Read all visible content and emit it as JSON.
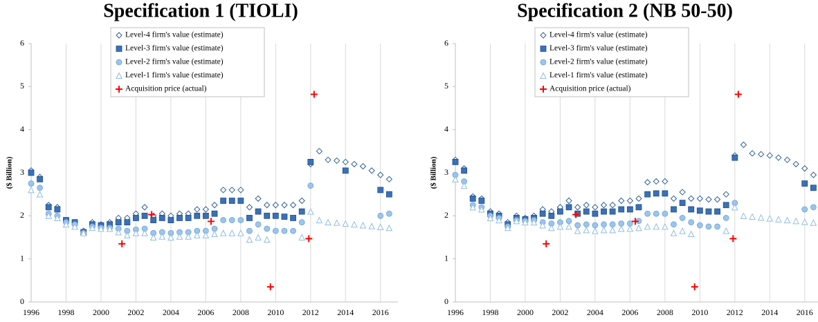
{
  "chart_data": [
    {
      "type": "scatter",
      "title": "Specification 1 (TIOLI)",
      "y_label": "($ Billion)",
      "xlim": [
        1996,
        2017
      ],
      "ylim": [
        0,
        6
      ],
      "xticks": [
        1996,
        1998,
        2000,
        2002,
        2004,
        2006,
        2008,
        2010,
        2012,
        2014,
        2016
      ],
      "yticks": [
        0,
        1,
        2,
        3,
        4,
        5,
        6
      ],
      "grid": "x",
      "series": [
        {
          "name": "Level-4 firm's value (estimate)",
          "color": "#2f5f9a",
          "marker": "diamond",
          "x": [
            1996,
            1996.5,
            1997,
            1997.5,
            1998,
            1998.5,
            1999,
            1999.5,
            2000,
            2000.5,
            2001,
            2001.5,
            2002,
            2002.5,
            2003,
            2003.5,
            2004,
            2004.5,
            2005,
            2005.5,
            2006,
            2006.5,
            2007,
            2007.5,
            2008,
            2008.5,
            2009,
            2009.5,
            2010,
            2010.5,
            2011,
            2011.5,
            2012,
            2012.5,
            2013,
            2013.5,
            2014,
            2014.5,
            2015,
            2015.5,
            2016,
            2016.5
          ],
          "values": [
            3.05,
            2.9,
            2.25,
            2.2,
            1.9,
            1.85,
            1.65,
            1.85,
            1.8,
            1.85,
            1.95,
            1.95,
            2.05,
            2.2,
            2.0,
            2.05,
            2.0,
            2.05,
            2.05,
            2.15,
            2.15,
            2.25,
            2.6,
            2.6,
            2.6,
            2.2,
            2.4,
            2.25,
            2.25,
            2.25,
            2.25,
            2.35,
            3.2,
            3.5,
            3.3,
            3.28,
            3.25,
            3.2,
            3.15,
            3.05,
            2.95,
            2.85
          ]
        },
        {
          "name": "Level-3 firm's value (estimate)",
          "color": "#3a70b8",
          "marker": "square",
          "x": [
            1996,
            1996.5,
            1997,
            1997.5,
            1998,
            1998.5,
            1999,
            1999.5,
            2000,
            2000.5,
            2001,
            2001.5,
            2002,
            2002.5,
            2003,
            2003.5,
            2004,
            2004.5,
            2005,
            2005.5,
            2006,
            2006.5,
            2007,
            2007.5,
            2008,
            2008.5,
            2009,
            2009.5,
            2010,
            2010.5,
            2011,
            2011.5,
            2012,
            2012.5,
            2013,
            2013.5,
            2014,
            2014.5,
            2015,
            2015.5,
            2016,
            2016.5
          ],
          "values": [
            3.0,
            2.85,
            2.2,
            2.15,
            1.9,
            1.85,
            1.62,
            1.8,
            1.78,
            1.8,
            1.85,
            1.85,
            1.95,
            2.0,
            1.9,
            1.95,
            1.9,
            1.95,
            1.95,
            2.0,
            2.0,
            2.05,
            2.35,
            2.35,
            2.35,
            1.95,
            2.1,
            2.0,
            2.0,
            1.98,
            1.95,
            2.1,
            3.25,
            null,
            null,
            null,
            3.05,
            null,
            null,
            null,
            2.6,
            2.5
          ]
        },
        {
          "name": "Level-2 firm's value (estimate)",
          "color": "#9cc4ec",
          "marker": "circle",
          "x": [
            1996,
            1996.5,
            1997,
            1997.5,
            1998,
            1998.5,
            1999,
            1999.5,
            2000,
            2000.5,
            2001,
            2001.5,
            2002,
            2002.5,
            2003,
            2003.5,
            2004,
            2004.5,
            2005,
            2005.5,
            2006,
            2006.5,
            2007,
            2007.5,
            2008,
            2008.5,
            2009,
            2009.5,
            2010,
            2010.5,
            2011,
            2011.5,
            2012,
            2012.5,
            2013,
            2013.5,
            2014,
            2014.5,
            2015,
            2015.5,
            2016,
            2016.5
          ],
          "values": [
            2.75,
            2.65,
            2.05,
            2.0,
            1.85,
            1.8,
            1.6,
            1.75,
            1.72,
            1.72,
            1.7,
            1.65,
            1.68,
            1.7,
            1.6,
            1.62,
            1.6,
            1.62,
            1.62,
            1.65,
            1.65,
            1.7,
            1.9,
            1.9,
            1.9,
            1.65,
            1.8,
            1.7,
            1.65,
            1.65,
            1.65,
            1.85,
            2.7,
            null,
            null,
            null,
            null,
            null,
            null,
            null,
            2.0,
            2.05
          ]
        },
        {
          "name": "Level-1 firm's value (estimate)",
          "color": "#8fbde6",
          "marker": "triangle",
          "x": [
            1996,
            1996.5,
            1997,
            1997.5,
            1998,
            1998.5,
            1999,
            1999.5,
            2000,
            2000.5,
            2001,
            2001.5,
            2002,
            2002.5,
            2003,
            2003.5,
            2004,
            2004.5,
            2005,
            2005.5,
            2006,
            2006.5,
            2007,
            2007.5,
            2008,
            2008.5,
            2009,
            2009.5,
            2010,
            2010.5,
            2011,
            2011.5,
            2012,
            2012.5,
            2013,
            2013.5,
            2014,
            2014.5,
            2015,
            2015.5,
            2016,
            2016.5
          ],
          "values": [
            2.6,
            2.5,
            2.0,
            1.95,
            1.8,
            1.75,
            1.6,
            1.72,
            1.7,
            1.7,
            1.62,
            1.55,
            1.6,
            1.6,
            1.5,
            1.52,
            1.5,
            1.52,
            1.52,
            1.55,
            1.55,
            1.58,
            1.6,
            1.6,
            1.6,
            1.45,
            1.5,
            1.45,
            null,
            null,
            null,
            1.5,
            2.1,
            1.9,
            1.85,
            1.84,
            1.82,
            1.8,
            1.78,
            1.76,
            1.74,
            1.72
          ]
        },
        {
          "name": "Acquisition price (actual)",
          "color": "#ff0000",
          "marker": "plus",
          "x": [
            2001.2,
            2002.9,
            2006.3,
            2009.7,
            2011.9,
            2012.2
          ],
          "values": [
            1.35,
            2.03,
            1.87,
            0.35,
            1.47,
            4.82
          ]
        }
      ]
    },
    {
      "type": "scatter",
      "title": "Specification 2 (NB 50-50)",
      "y_label": "($ Billion)",
      "xlim": [
        1996,
        2017
      ],
      "ylim": [
        0,
        6
      ],
      "xticks": [
        1996,
        1998,
        2000,
        2002,
        2004,
        2006,
        2008,
        2010,
        2012,
        2014,
        2016
      ],
      "yticks": [
        0,
        1,
        2,
        3,
        4,
        5,
        6
      ],
      "grid": "x",
      "series": [
        {
          "name": "Level-4 firm's value (estimate)",
          "color": "#2f5f9a",
          "marker": "diamond",
          "x": [
            1996,
            1996.5,
            1997,
            1997.5,
            1998,
            1998.5,
            1999,
            1999.5,
            2000,
            2000.5,
            2001,
            2001.5,
            2002,
            2002.5,
            2003,
            2003.5,
            2004,
            2004.5,
            2005,
            2005.5,
            2006,
            2006.5,
            2007,
            2007.5,
            2008,
            2008.5,
            2009,
            2009.5,
            2010,
            2010.5,
            2011,
            2011.5,
            2012,
            2012.5,
            2013,
            2013.5,
            2014,
            2014.5,
            2015,
            2015.5,
            2016,
            2016.5
          ],
          "values": [
            3.3,
            3.1,
            2.45,
            2.4,
            2.1,
            2.05,
            1.85,
            2.0,
            1.95,
            2.0,
            2.15,
            2.1,
            2.2,
            2.35,
            2.2,
            2.25,
            2.2,
            2.25,
            2.25,
            2.35,
            2.35,
            2.4,
            2.78,
            2.8,
            2.8,
            2.4,
            2.55,
            2.4,
            2.4,
            2.38,
            2.38,
            2.5,
            3.4,
            3.65,
            3.45,
            3.43,
            3.4,
            3.35,
            3.3,
            3.2,
            3.1,
            2.95
          ]
        },
        {
          "name": "Level-3 firm's value (estimate)",
          "color": "#3a70b8",
          "marker": "square",
          "x": [
            1996,
            1996.5,
            1997,
            1997.5,
            1998,
            1998.5,
            1999,
            1999.5,
            2000,
            2000.5,
            2001,
            2001.5,
            2002,
            2002.5,
            2003,
            2003.5,
            2004,
            2004.5,
            2005,
            2005.5,
            2006,
            2006.5,
            2007,
            2007.5,
            2008,
            2008.5,
            2009,
            2009.5,
            2010,
            2010.5,
            2011,
            2011.5,
            2012,
            2012.5,
            2013,
            2013.5,
            2014,
            2014.5,
            2015,
            2015.5,
            2016,
            2016.5
          ],
          "values": [
            3.25,
            3.05,
            2.4,
            2.35,
            2.05,
            2.0,
            1.8,
            1.95,
            1.92,
            1.95,
            2.05,
            2.0,
            2.1,
            2.2,
            2.05,
            2.1,
            2.05,
            2.1,
            2.1,
            2.15,
            2.15,
            2.2,
            2.5,
            2.52,
            2.52,
            2.15,
            2.3,
            2.15,
            2.12,
            2.1,
            2.1,
            2.25,
            3.35,
            null,
            null,
            null,
            null,
            null,
            null,
            null,
            2.75,
            2.65
          ]
        },
        {
          "name": "Level-2 firm's value (estimate)",
          "color": "#9cc4ec",
          "marker": "circle",
          "x": [
            1996,
            1996.5,
            1997,
            1997.5,
            1998,
            1998.5,
            1999,
            1999.5,
            2000,
            2000.5,
            2001,
            2001.5,
            2002,
            2002.5,
            2003,
            2003.5,
            2004,
            2004.5,
            2005,
            2005.5,
            2006,
            2006.5,
            2007,
            2007.5,
            2008,
            2008.5,
            2009,
            2009.5,
            2010,
            2010.5,
            2011,
            2011.5,
            2012,
            2012.5,
            2013,
            2013.5,
            2014,
            2014.5,
            2015,
            2015.5,
            2016,
            2016.5
          ],
          "values": [
            2.95,
            2.8,
            2.25,
            2.2,
            2.0,
            1.95,
            1.75,
            1.9,
            1.88,
            1.9,
            1.85,
            1.82,
            1.85,
            1.88,
            1.78,
            1.8,
            1.78,
            1.8,
            1.8,
            1.82,
            1.82,
            1.88,
            2.05,
            2.05,
            2.05,
            1.8,
            1.95,
            1.85,
            1.78,
            1.75,
            1.75,
            1.95,
            2.3,
            null,
            null,
            null,
            null,
            null,
            null,
            null,
            2.15,
            2.2
          ]
        },
        {
          "name": "Level-1 firm's value (estimate)",
          "color": "#8fbde6",
          "marker": "triangle",
          "x": [
            1996,
            1996.5,
            1997,
            1997.5,
            1998,
            1998.5,
            1999,
            1999.5,
            2000,
            2000.5,
            2001,
            2001.5,
            2002,
            2002.5,
            2003,
            2003.5,
            2004,
            2004.5,
            2005,
            2005.5,
            2006,
            2006.5,
            2007,
            2007.5,
            2008,
            2008.5,
            2009,
            2009.5,
            2010,
            2010.5,
            2011,
            2011.5,
            2012,
            2012.5,
            2013,
            2013.5,
            2014,
            2014.5,
            2015,
            2015.5,
            2016,
            2016.5
          ],
          "values": [
            2.85,
            2.7,
            2.2,
            2.15,
            1.95,
            1.9,
            1.72,
            1.88,
            1.85,
            1.85,
            1.78,
            1.72,
            1.75,
            1.75,
            1.65,
            1.67,
            1.65,
            1.67,
            1.67,
            1.7,
            1.7,
            1.72,
            1.75,
            1.75,
            1.75,
            1.6,
            1.65,
            1.58,
            null,
            null,
            null,
            1.65,
            2.2,
            2.0,
            1.98,
            1.96,
            1.94,
            1.92,
            1.9,
            1.88,
            1.86,
            1.84
          ]
        },
        {
          "name": "Acquisition price (actual)",
          "color": "#ff0000",
          "marker": "plus",
          "x": [
            2001.2,
            2002.9,
            2006.3,
            2009.7,
            2011.9,
            2012.2
          ],
          "values": [
            1.35,
            2.03,
            1.87,
            0.35,
            1.47,
            4.82
          ]
        }
      ]
    }
  ]
}
